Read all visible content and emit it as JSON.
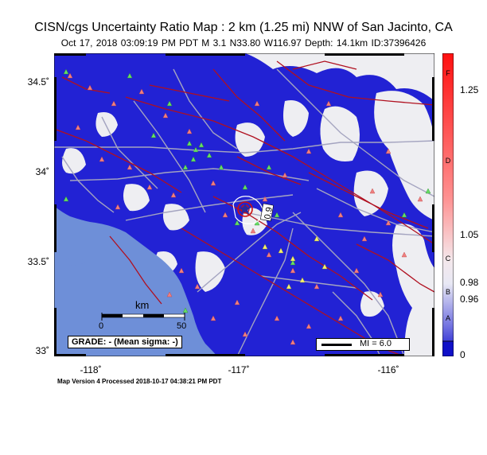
{
  "header": {
    "title": "CISN/cgs Uncertainty Ratio Map : 2 km (1.25 mi) NNW of San Jacinto, CA",
    "subtitle": "Oct 17, 2018 03:09:19 PM PDT   M 3.1   N33.80 W116.97   Depth: 14.1km   ID:37396426"
  },
  "map": {
    "lat_ticks": [
      {
        "label": "34.5˚",
        "value": 34.5
      },
      {
        "label": "34˚",
        "value": 34.0
      },
      {
        "label": "33.5˚",
        "value": 33.5
      },
      {
        "label": "33˚",
        "value": 33.0
      }
    ],
    "lon_ticks": [
      {
        "label": "-118˚",
        "value": -118
      },
      {
        "label": "-117˚",
        "value": -117
      },
      {
        "label": "-116˚",
        "value": -116
      }
    ],
    "contour_label": "0.9",
    "scale_bar": {
      "unit": "km",
      "start": "0",
      "end": "50"
    },
    "grade_text": "GRADE: - (Mean sigma: -)",
    "mi_legend": "MI = 6.0",
    "colors": {
      "ocean": "#6e8fd8",
      "high_uncertainty": "#2020d0",
      "land_low": "#f0f0f0",
      "fault": "#b01020",
      "road": "#a0a0b8"
    }
  },
  "colorbar": {
    "values": [
      {
        "label": "1.25",
        "value": 1.25
      },
      {
        "label": "1.05",
        "value": 1.05
      },
      {
        "label": "0.98",
        "value": 0.98
      },
      {
        "label": "0.96",
        "value": 0.96
      },
      {
        "label": "0",
        "value": 0
      }
    ],
    "grades": [
      "F",
      "D",
      "C",
      "B",
      "A"
    ]
  },
  "footer": {
    "processed": "Map Version 4 Processed 2018-10-17 04:38:21 PM PDT"
  }
}
